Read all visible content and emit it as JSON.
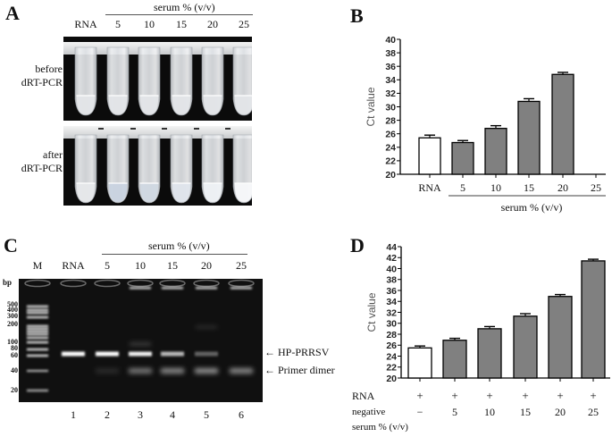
{
  "panels": {
    "A": {
      "letter": "A",
      "group_label": "serum % (v/v)",
      "columns": [
        "RNA",
        "5",
        "10",
        "15",
        "20",
        "25"
      ],
      "rows": [
        {
          "label_line1": "before",
          "label_line2": "dRT-PCR"
        },
        {
          "label_line1": "after",
          "label_line2": "dRT-PCR"
        }
      ]
    },
    "B": {
      "letter": "B",
      "ylabel": "Ct value",
      "categories": [
        "RNA",
        "5",
        "10",
        "15",
        "20",
        "25"
      ],
      "group_label": "serum % (v/v)"
    },
    "C": {
      "letter": "C",
      "group_label": "serum % (v/v)",
      "lane_headers": [
        "M",
        "RNA",
        "5",
        "10",
        "15",
        "20",
        "25"
      ],
      "bp_label": "bp",
      "marker_sizes": [
        "500",
        "400",
        "300",
        "200",
        "100",
        "80",
        "60",
        "40",
        "20"
      ],
      "lane_numbers": [
        "1",
        "2",
        "3",
        "4",
        "5",
        "6"
      ],
      "annotations": [
        {
          "arrow": "←",
          "text": "HP-PRRSV"
        },
        {
          "arrow": "←",
          "text": "Primer dimer"
        }
      ]
    },
    "D": {
      "letter": "D",
      "ylabel": "Ct value",
      "row_rna_label": "RNA",
      "row_rna_values": [
        "+",
        "+",
        "+",
        "+",
        "+",
        "+"
      ],
      "row_serum_label_1": "negative",
      "row_serum_label_2": "serum % (v/v)",
      "row_serum_values": [
        "−",
        "5",
        "10",
        "15",
        "20",
        "25"
      ]
    }
  },
  "chart_data": [
    {
      "panel": "B",
      "type": "bar",
      "title": "",
      "xlabel": "serum % (v/v)",
      "ylabel": "Ct value",
      "categories": [
        "RNA",
        "5",
        "10",
        "15",
        "20",
        "25"
      ],
      "values": [
        25.4,
        24.7,
        26.8,
        30.8,
        34.8,
        null
      ],
      "errors": [
        0.4,
        0.3,
        0.4,
        0.4,
        0.3,
        null
      ],
      "bar_colors": [
        "#ffffff",
        "#808080",
        "#808080",
        "#808080",
        "#808080",
        "#808080"
      ],
      "ylim": [
        20,
        40
      ],
      "yticks": [
        20,
        22,
        24,
        26,
        28,
        30,
        32,
        34,
        36,
        38,
        40
      ],
      "grid": false,
      "legend": "none"
    },
    {
      "panel": "D",
      "type": "bar",
      "title": "",
      "xlabel": "RNA + negative serum % (v/v)",
      "ylabel": "Ct value",
      "categories": [
        "RNA only",
        "RNA + 5",
        "RNA + 10",
        "RNA + 15",
        "RNA + 20",
        "RNA + 25"
      ],
      "values": [
        25.5,
        26.9,
        29.0,
        31.3,
        34.9,
        41.4
      ],
      "errors": [
        0.35,
        0.35,
        0.4,
        0.45,
        0.35,
        0.3
      ],
      "bar_colors": [
        "#ffffff",
        "#808080",
        "#808080",
        "#808080",
        "#808080",
        "#808080"
      ],
      "ylim": [
        20,
        44
      ],
      "yticks": [
        20,
        22,
        24,
        26,
        28,
        30,
        32,
        34,
        36,
        38,
        40,
        42,
        44
      ],
      "grid": false,
      "legend": "none"
    }
  ]
}
